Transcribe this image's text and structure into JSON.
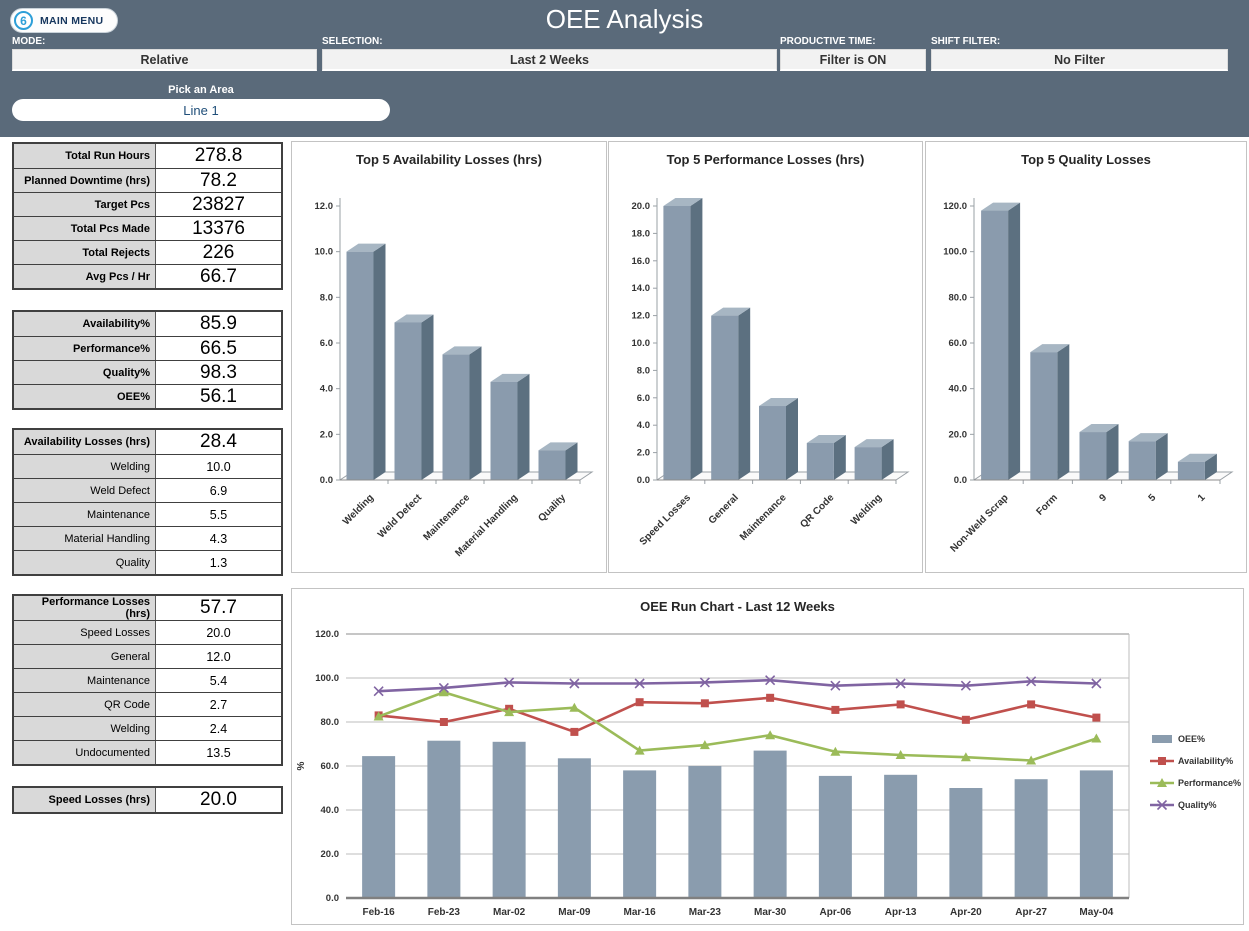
{
  "header": {
    "title": "OEE Analysis",
    "main_menu_label": "MAIN MENU",
    "logo_glyph": "6",
    "filters": [
      {
        "label": "MODE:",
        "value": "Relative"
      },
      {
        "label": "SELECTION:",
        "value": "Last 2 Weeks"
      },
      {
        "label": "PRODUCTIVE TIME:",
        "value": "Filter is ON"
      },
      {
        "label": "SHIFT FILTER:",
        "value": "No Filter"
      }
    ],
    "area_picker": {
      "label": "Pick an Area",
      "value": "Line 1"
    }
  },
  "colors": {
    "header_bg": "#5A6A7A",
    "bar_front": "#8A9BAD",
    "bar_side": "#5C7080",
    "bar_top": "#A7B6C3",
    "oee_bar": "#8A9CAE",
    "availability": "#C0504D",
    "performance": "#9BBB59",
    "quality": "#8064A2"
  },
  "tables": {
    "summary": [
      {
        "label": "Total Run Hours",
        "value": "278.8",
        "header": true
      },
      {
        "label": "Planned Downtime (hrs)",
        "value": "78.2",
        "header": true
      },
      {
        "label": "Target Pcs",
        "value": "23827",
        "header": true
      },
      {
        "label": "Total Pcs Made",
        "value": "13376",
        "header": true
      },
      {
        "label": "Total Rejects",
        "value": "226",
        "header": true
      },
      {
        "label": "Avg Pcs / Hr",
        "value": "66.7",
        "header": true
      }
    ],
    "oee": [
      {
        "label": "Availability%",
        "value": "85.9",
        "header": true
      },
      {
        "label": "Performance%",
        "value": "66.5",
        "header": true
      },
      {
        "label": "Quality%",
        "value": "98.3",
        "header": true
      },
      {
        "label": "OEE%",
        "value": "56.1",
        "header": true
      }
    ],
    "availability_losses": [
      {
        "label": "Availability Losses (hrs)",
        "value": "28.4",
        "header": true
      },
      {
        "label": "Welding",
        "value": "10.0"
      },
      {
        "label": "Weld Defect",
        "value": "6.9"
      },
      {
        "label": "Maintenance",
        "value": "5.5"
      },
      {
        "label": "Material Handling",
        "value": "4.3"
      },
      {
        "label": "Quality",
        "value": "1.3"
      }
    ],
    "performance_losses": [
      {
        "label": "Performance Losses (hrs)",
        "value": "57.7",
        "header": true
      },
      {
        "label": "Speed Losses",
        "value": "20.0"
      },
      {
        "label": "General",
        "value": "12.0"
      },
      {
        "label": "Maintenance",
        "value": "5.4"
      },
      {
        "label": "QR Code",
        "value": "2.7"
      },
      {
        "label": "Welding",
        "value": "2.4"
      },
      {
        "label": "Undocumented",
        "value": "13.5"
      }
    ],
    "speed_losses": [
      {
        "label": "Speed Losses (hrs)",
        "value": "20.0",
        "header": true
      }
    ]
  },
  "chart_data": [
    {
      "type": "bar",
      "id": "avail",
      "title": "Top 5 Availability Losses (hrs)",
      "categories": [
        "Welding",
        "Weld Defect",
        "Maintenance",
        "Material Handling",
        "Quality"
      ],
      "values": [
        10.0,
        6.9,
        5.5,
        4.3,
        1.3
      ],
      "xlabel": "",
      "ylabel": "",
      "ylim": [
        0,
        12
      ],
      "ytick_step": 2,
      "grid": false,
      "style": "3d"
    },
    {
      "type": "bar",
      "id": "perf",
      "title": "Top  5 Performance Losses (hrs)",
      "categories": [
        "Speed Losses",
        "General",
        "Maintenance",
        "QR Code",
        "Welding"
      ],
      "values": [
        20.0,
        12.0,
        5.4,
        2.7,
        2.4
      ],
      "xlabel": "",
      "ylabel": "",
      "ylim": [
        0,
        20
      ],
      "ytick_step": 2,
      "grid": false,
      "style": "3d"
    },
    {
      "type": "bar",
      "id": "qual",
      "title": "Top 5 Quality Losses",
      "categories": [
        "Non-Weld Scrap",
        "Form",
        "9",
        "5",
        "1"
      ],
      "values": [
        118,
        56,
        21,
        17,
        8
      ],
      "xlabel": "",
      "ylabel": "",
      "ylim": [
        0,
        120
      ],
      "ytick_step": 20,
      "grid": false,
      "style": "3d"
    },
    {
      "type": "combo",
      "id": "run",
      "title": "OEE Run Chart - Last 12 Weeks",
      "categories": [
        "Feb-16",
        "Feb-23",
        "Mar-02",
        "Mar-09",
        "Mar-16",
        "Mar-23",
        "Mar-30",
        "Apr-06",
        "Apr-13",
        "Apr-20",
        "Apr-27",
        "May-04"
      ],
      "series": [
        {
          "name": "OEE%",
          "kind": "bar",
          "color": "#8A9CAE",
          "marker": "rect",
          "values": [
            64.5,
            71.5,
            71.0,
            63.5,
            58.0,
            60.0,
            67.0,
            55.5,
            56.0,
            50.0,
            54.0,
            58.0
          ]
        },
        {
          "name": "Availability%",
          "kind": "line",
          "color": "#C0504D",
          "marker": "square",
          "values": [
            83.0,
            80.0,
            86.0,
            75.5,
            89.0,
            88.5,
            91.0,
            85.5,
            88.0,
            81.0,
            88.0,
            82.0
          ]
        },
        {
          "name": "Performance%",
          "kind": "line",
          "color": "#9BBB59",
          "marker": "triangle",
          "values": [
            82.5,
            93.5,
            84.5,
            86.5,
            67.0,
            69.5,
            74.0,
            66.5,
            65.0,
            64.0,
            62.5,
            72.5
          ]
        },
        {
          "name": "Quality%",
          "kind": "line",
          "color": "#8064A2",
          "marker": "x",
          "values": [
            94.0,
            95.5,
            98.0,
            97.5,
            97.5,
            98.0,
            99.0,
            96.5,
            97.5,
            96.5,
            98.5,
            97.5
          ]
        }
      ],
      "xlabel": "",
      "ylabel": "%",
      "ylim": [
        0,
        120
      ],
      "ytick_step": 20,
      "grid": true,
      "legend_position": "right"
    }
  ]
}
